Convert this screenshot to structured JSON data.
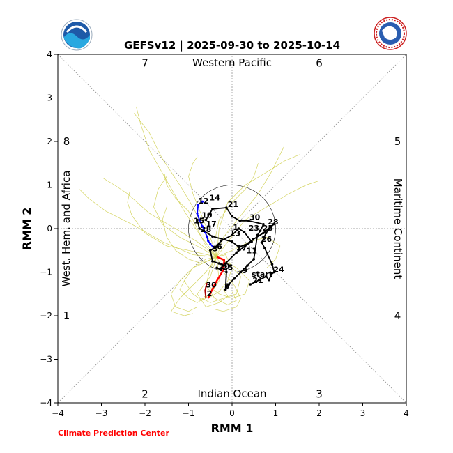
{
  "chart_data": {
    "type": "line",
    "title": "GEFSv12 | 2025-09-30 to 2025-10-14",
    "xlabel": "RMM 1",
    "ylabel": "RMM 2",
    "xlim": [
      -4,
      4
    ],
    "ylim": [
      -4,
      4
    ],
    "xticks": [
      "−4",
      "−3",
      "−2",
      "−1",
      "0",
      "1",
      "2",
      "3",
      "4"
    ],
    "yticks": [
      "−4",
      "−3",
      "−2",
      "−1",
      "0",
      "1",
      "2",
      "3",
      "4"
    ],
    "grid": false,
    "phase_labels": [
      {
        "text": "7",
        "x": -2,
        "y": 3.8
      },
      {
        "text": "6",
        "x": 2,
        "y": 3.8
      },
      {
        "text": "8",
        "x": -3.8,
        "y": 2
      },
      {
        "text": "5",
        "x": 3.8,
        "y": 2
      },
      {
        "text": "1",
        "x": -3.8,
        "y": -2
      },
      {
        "text": "4",
        "x": 3.8,
        "y": -2
      },
      {
        "text": "2",
        "x": -2,
        "y": -3.8
      },
      {
        "text": "3",
        "x": 2,
        "y": -3.8
      }
    ],
    "regions": {
      "top": "Western Pacific",
      "bottom": "Indian Ocean",
      "left": "West. Hem. and Africa",
      "right": "Maritime Continent"
    },
    "credit": "Climate Prediction Center",
    "colors": {
      "observed": "#000000",
      "recent": "#0000ff",
      "forecast_mean": "#ff0000",
      "ensemble": "#cccc44",
      "dark_red": "#aa0000"
    },
    "observed": [
      [
        0.42,
        -1.28
      ],
      [
        0.62,
        -1.18
      ],
      [
        0.78,
        -1.1
      ],
      [
        0.85,
        -1.18
      ],
      [
        0.9,
        -1.05
      ],
      [
        0.97,
        -1.0
      ],
      [
        0.92,
        -0.82
      ],
      [
        0.75,
        -0.45
      ],
      [
        0.68,
        -0.32
      ],
      [
        0.78,
        -0.1
      ],
      [
        0.95,
        0.1
      ],
      [
        0.72,
        -0.1
      ],
      [
        0.48,
        -0.25
      ],
      [
        0.3,
        -0.38
      ],
      [
        0.15,
        -0.42
      ],
      [
        0.0,
        -0.3
      ],
      [
        -0.45,
        -0.18
      ],
      [
        -0.65,
        -0.05
      ],
      [
        -0.75,
        0.0
      ],
      [
        -0.8,
        0.2
      ],
      [
        -0.6,
        0.2
      ],
      [
        -0.45,
        0.45
      ],
      [
        -0.13,
        0.48
      ],
      [
        0.0,
        0.28
      ],
      [
        0.18,
        0.18
      ],
      [
        0.38,
        0.18
      ],
      [
        0.72,
        0.1
      ],
      [
        0.65,
        -0.05
      ],
      [
        0.58,
        -0.15
      ],
      [
        0.5,
        -0.7
      ],
      [
        0.35,
        -0.85
      ],
      [
        0.2,
        -1.0
      ],
      [
        0.05,
        -1.15
      ],
      [
        -0.1,
        -1.3
      ],
      [
        -0.15,
        -1.4
      ],
      [
        -0.13,
        -1.0
      ],
      [
        -0.15,
        -0.8
      ],
      [
        0.1,
        -0.55
      ],
      [
        0.3,
        -0.4
      ],
      [
        0.45,
        -0.3
      ],
      [
        0.28,
        -0.08
      ],
      [
        0.15,
        0.0
      ],
      [
        0.0,
        -0.15
      ],
      [
        -0.25,
        -0.28
      ],
      [
        -0.4,
        -0.45
      ],
      [
        -0.5,
        -0.5
      ],
      [
        -0.45,
        -0.75
      ],
      [
        -0.3,
        -0.8
      ],
      [
        -0.2,
        -0.85
      ],
      [
        -0.25,
        -0.95
      ],
      [
        -0.35,
        -0.9
      ]
    ],
    "recent": [
      [
        -0.68,
        0.62
      ],
      [
        -0.78,
        0.55
      ],
      [
        -0.8,
        0.35
      ],
      [
        -0.75,
        0.2
      ],
      [
        -0.68,
        0.05
      ],
      [
        -0.62,
        -0.08
      ],
      [
        -0.58,
        -0.18
      ],
      [
        -0.55,
        -0.28
      ],
      [
        -0.5,
        -0.35
      ],
      [
        -0.42,
        -0.45
      ]
    ],
    "forecast_mean": [
      [
        -0.35,
        -0.65
      ],
      [
        -0.18,
        -0.72
      ],
      [
        -0.2,
        -0.95
      ],
      [
        -0.28,
        -1.08
      ],
      [
        -0.38,
        -1.25
      ],
      [
        -0.48,
        -1.45
      ],
      [
        -0.55,
        -1.6
      ]
    ],
    "forecast_mean_dark": [
      [
        -0.58,
        -1.25
      ],
      [
        -0.62,
        -1.42
      ],
      [
        -0.6,
        -1.6
      ]
    ],
    "ensemble": [
      [
        [
          -0.35,
          -0.65
        ],
        [
          -0.8,
          -0.3
        ],
        [
          -1.3,
          0.0
        ],
        [
          -1.9,
          0.35
        ],
        [
          -2.4,
          0.8
        ],
        [
          -2.7,
          1.0
        ],
        [
          -2.95,
          1.15
        ]
      ],
      [
        [
          -0.35,
          -0.65
        ],
        [
          -0.7,
          -0.2
        ],
        [
          -1.1,
          0.4
        ],
        [
          -1.5,
          1.1
        ],
        [
          -1.9,
          1.8
        ],
        [
          -2.1,
          2.4
        ],
        [
          -2.2,
          2.8
        ]
      ],
      [
        [
          -0.35,
          -0.65
        ],
        [
          -0.6,
          -0.1
        ],
        [
          -0.9,
          0.5
        ],
        [
          -1.2,
          1.0
        ],
        [
          -1.6,
          1.6
        ],
        [
          -1.9,
          2.2
        ],
        [
          -2.25,
          2.65
        ]
      ],
      [
        [
          -0.35,
          -0.65
        ],
        [
          -0.3,
          0.0
        ],
        [
          -0.1,
          0.6
        ],
        [
          0.3,
          1.0
        ],
        [
          0.8,
          1.3
        ],
        [
          1.2,
          1.55
        ],
        [
          1.55,
          1.7
        ]
      ],
      [
        [
          -0.35,
          -0.65
        ],
        [
          -0.1,
          -0.3
        ],
        [
          0.3,
          0.2
        ],
        [
          0.8,
          0.5
        ],
        [
          1.3,
          0.8
        ],
        [
          1.7,
          1.0
        ],
        [
          2.0,
          1.1
        ]
      ],
      [
        [
          -0.35,
          -0.65
        ],
        [
          -0.9,
          -0.6
        ],
        [
          -1.6,
          -0.3
        ],
        [
          -2.3,
          0.1
        ],
        [
          -2.9,
          0.4
        ],
        [
          -3.3,
          0.7
        ],
        [
          -3.5,
          0.9
        ]
      ],
      [
        [
          -0.35,
          -0.65
        ],
        [
          -0.6,
          -1.0
        ],
        [
          -0.9,
          -1.3
        ],
        [
          -1.2,
          -1.6
        ],
        [
          -1.4,
          -1.9
        ],
        [
          -1.1,
          -2.0
        ],
        [
          -0.9,
          -1.95
        ]
      ],
      [
        [
          -0.35,
          -0.65
        ],
        [
          -0.2,
          -1.0
        ],
        [
          0.05,
          -1.3
        ],
        [
          0.2,
          -1.6
        ],
        [
          0.1,
          -1.8
        ],
        [
          -0.2,
          -1.9
        ],
        [
          -0.4,
          -1.85
        ]
      ],
      [
        [
          -0.35,
          -0.65
        ],
        [
          -0.5,
          -1.1
        ],
        [
          -0.8,
          -1.5
        ],
        [
          -0.6,
          -1.8
        ],
        [
          -0.3,
          -1.7
        ],
        [
          -0.1,
          -1.55
        ],
        [
          -0.2,
          -1.4
        ]
      ],
      [
        [
          -0.35,
          -0.65
        ],
        [
          -0.1,
          -0.8
        ],
        [
          0.2,
          -1.1
        ],
        [
          0.1,
          -1.5
        ],
        [
          -0.2,
          -1.6
        ],
        [
          -0.5,
          -1.7
        ],
        [
          -0.7,
          -1.6
        ]
      ],
      [
        [
          -0.35,
          -0.65
        ],
        [
          -0.6,
          -0.7
        ],
        [
          -0.9,
          -0.9
        ],
        [
          -1.1,
          -1.2
        ],
        [
          -0.9,
          -1.5
        ],
        [
          -0.7,
          -1.65
        ],
        [
          -0.5,
          -1.55
        ]
      ],
      [
        [
          -0.35,
          -0.65
        ],
        [
          -0.4,
          -0.3
        ],
        [
          -0.3,
          0.2
        ],
        [
          0.0,
          0.6
        ],
        [
          0.3,
          0.9
        ],
        [
          0.5,
          1.2
        ],
        [
          0.6,
          1.5
        ]
      ],
      [
        [
          -0.35,
          -0.65
        ],
        [
          -0.5,
          -0.2
        ],
        [
          -0.7,
          0.3
        ],
        [
          -0.9,
          0.8
        ],
        [
          -1.0,
          1.2
        ],
        [
          -0.9,
          1.5
        ],
        [
          -0.8,
          1.65
        ]
      ],
      [
        [
          -0.35,
          -0.65
        ],
        [
          0.0,
          -0.5
        ],
        [
          0.4,
          -0.3
        ],
        [
          0.8,
          -0.2
        ],
        [
          1.1,
          -0.4
        ],
        [
          1.0,
          -0.7
        ],
        [
          0.8,
          -0.9
        ]
      ],
      [
        [
          -0.35,
          -0.65
        ],
        [
          -0.8,
          -0.4
        ],
        [
          -1.2,
          -0.2
        ],
        [
          -1.6,
          0.1
        ],
        [
          -1.8,
          0.5
        ],
        [
          -1.7,
          0.9
        ],
        [
          -1.5,
          1.2
        ]
      ],
      [
        [
          -0.35,
          -0.65
        ],
        [
          -0.3,
          -1.2
        ],
        [
          -0.5,
          -1.5
        ],
        [
          -0.8,
          -1.7
        ],
        [
          -1.0,
          -1.6
        ],
        [
          -1.2,
          -1.4
        ],
        [
          -1.1,
          -1.2
        ]
      ],
      [
        [
          -0.35,
          -0.65
        ],
        [
          0.1,
          -0.9
        ],
        [
          0.4,
          -1.2
        ],
        [
          0.3,
          -1.5
        ],
        [
          0.0,
          -1.6
        ],
        [
          -0.3,
          -1.5
        ],
        [
          -0.5,
          -1.35
        ]
      ],
      [
        [
          -0.35,
          -0.65
        ],
        [
          -0.7,
          -0.8
        ],
        [
          -1.0,
          -0.7
        ],
        [
          -1.3,
          -0.5
        ],
        [
          -1.5,
          -0.2
        ],
        [
          -1.6,
          0.2
        ],
        [
          -1.5,
          0.5
        ]
      ],
      [
        [
          -0.35,
          -0.65
        ],
        [
          -0.2,
          -0.2
        ],
        [
          0.2,
          0.3
        ],
        [
          0.6,
          0.8
        ],
        [
          0.9,
          1.3
        ],
        [
          1.1,
          1.7
        ],
        [
          1.2,
          1.9
        ]
      ],
      [
        [
          -0.35,
          -0.65
        ],
        [
          -0.5,
          -0.9
        ],
        [
          -0.6,
          -1.3
        ],
        [
          -0.4,
          -1.6
        ],
        [
          -0.1,
          -1.75
        ],
        [
          0.1,
          -1.65
        ],
        [
          0.0,
          -1.45
        ]
      ],
      [
        [
          -0.35,
          -0.65
        ],
        [
          -0.9,
          -0.9
        ],
        [
          -1.2,
          -1.2
        ],
        [
          -1.4,
          -1.5
        ],
        [
          -1.3,
          -1.8
        ],
        [
          -1.0,
          -1.9
        ],
        [
          -0.8,
          -1.8
        ]
      ],
      [
        [
          -0.35,
          -0.65
        ],
        [
          -0.15,
          -0.6
        ],
        [
          0.0,
          -0.9
        ],
        [
          -0.1,
          -1.2
        ],
        [
          -0.3,
          -1.45
        ],
        [
          -0.55,
          -1.6
        ],
        [
          -0.65,
          -1.55
        ]
      ],
      [
        [
          -0.35,
          -0.65
        ],
        [
          -1.0,
          -0.5
        ],
        [
          -1.5,
          -0.4
        ],
        [
          -2.0,
          -0.1
        ],
        [
          -2.3,
          0.3
        ],
        [
          -2.4,
          0.6
        ],
        [
          -2.35,
          0.85
        ]
      ],
      [
        [
          -0.35,
          -0.65
        ],
        [
          -0.6,
          -0.4
        ],
        [
          -0.8,
          0.0
        ],
        [
          -1.0,
          0.4
        ],
        [
          -1.3,
          0.7
        ],
        [
          -1.5,
          1.0
        ],
        [
          -1.55,
          1.25
        ]
      ]
    ],
    "point_labels": [
      {
        "text": "12",
        "x": -0.78,
        "y": 0.58
      },
      {
        "text": "14",
        "x": -0.52,
        "y": 0.65
      },
      {
        "text": "21",
        "x": -0.1,
        "y": 0.5
      },
      {
        "text": "10",
        "x": -0.7,
        "y": 0.25
      },
      {
        "text": "15",
        "x": -0.88,
        "y": 0.12
      },
      {
        "text": "17",
        "x": -0.6,
        "y": 0.05
      },
      {
        "text": "28",
        "x": -0.72,
        "y": -0.08
      },
      {
        "text": "13",
        "x": -0.05,
        "y": -0.17
      },
      {
        "text": "1",
        "x": 0.02,
        "y": -0.03
      },
      {
        "text": "30",
        "x": 0.4,
        "y": 0.2
      },
      {
        "text": "23",
        "x": 0.38,
        "y": -0.05
      },
      {
        "text": "28",
        "x": 0.82,
        "y": 0.1
      },
      {
        "text": "25",
        "x": 0.7,
        "y": -0.05
      },
      {
        "text": "26",
        "x": 0.67,
        "y": -0.3
      },
      {
        "text": "27",
        "x": 0.1,
        "y": -0.5
      },
      {
        "text": "11",
        "x": 0.33,
        "y": -0.57
      },
      {
        "text": "6",
        "x": -0.35,
        "y": -0.47
      },
      {
        "text": "3",
        "x": -0.45,
        "y": -0.52
      },
      {
        "text": "20",
        "x": -0.3,
        "y": -0.93
      },
      {
        "text": "25",
        "x": -0.22,
        "y": -0.95
      },
      {
        "text": "9",
        "x": 0.23,
        "y": -1.02
      },
      {
        "text": "24",
        "x": 0.95,
        "y": -1.0
      },
      {
        "text": "start",
        "x": 0.45,
        "y": -1.1
      },
      {
        "text": "21",
        "x": 0.47,
        "y": -1.25
      },
      {
        "text": "30",
        "x": -0.6,
        "y": -1.35
      },
      {
        "text": "7",
        "x": -0.15,
        "y": -1.38
      },
      {
        "text": "2",
        "x": -0.58,
        "y": -1.55
      }
    ]
  }
}
